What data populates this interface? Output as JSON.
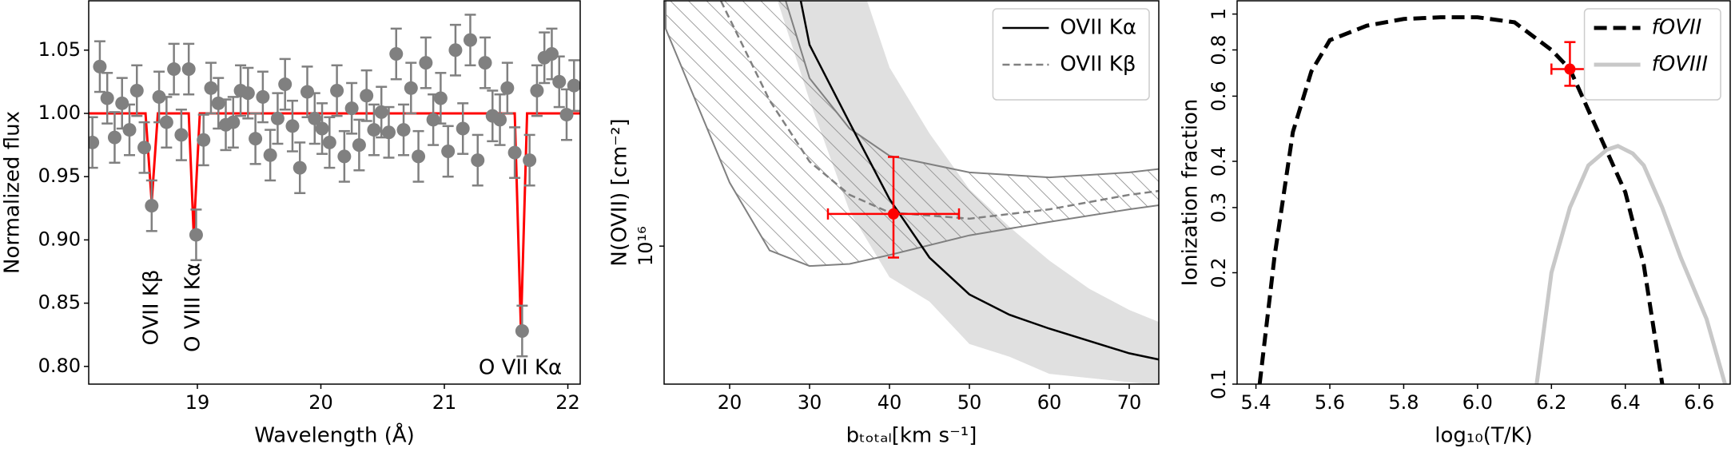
{
  "chart_data": [
    {
      "type": "errorbar",
      "xlabel": "Wavelength (Å)",
      "ylabel": "Normalized flux",
      "xlim": [
        18.12,
        22.1
      ],
      "ylim": [
        0.786,
        1.089
      ],
      "log_y": false,
      "xticks": [
        19,
        20,
        21,
        22
      ],
      "yticks": [
        {
          "value": 0.8,
          "label": "0.80"
        },
        {
          "value": 0.85,
          "label": "0.85"
        },
        {
          "value": 0.9,
          "label": "0.90"
        },
        {
          "value": 0.95,
          "label": "0.95"
        },
        {
          "value": 1.0,
          "label": "1.00"
        },
        {
          "value": 1.05,
          "label": "1.05"
        }
      ],
      "series": [
        {
          "type": "errorbar",
          "color": "#808080",
          "yerr": 0.02,
          "x": [
            18.15,
            18.21,
            18.27,
            18.33,
            18.39,
            18.45,
            18.51,
            18.57,
            18.63,
            18.69,
            18.75,
            18.81,
            18.87,
            18.93,
            18.99,
            19.05,
            19.11,
            19.17,
            19.23,
            19.29,
            19.35,
            19.41,
            19.47,
            19.53,
            19.59,
            19.65,
            19.71,
            19.77,
            19.83,
            19.89,
            19.95,
            20.01,
            20.07,
            20.13,
            20.19,
            20.25,
            20.31,
            20.37,
            20.43,
            20.49,
            20.55,
            20.61,
            20.67,
            20.73,
            20.79,
            20.85,
            20.91,
            20.97,
            21.03,
            21.09,
            21.15,
            21.21,
            21.27,
            21.33,
            21.39,
            21.45,
            21.51,
            21.57,
            21.63,
            21.69,
            21.75,
            21.81,
            21.87,
            21.93,
            21.99,
            22.05
          ],
          "values": [
            0.977,
            1.037,
            1.012,
            0.981,
            1.008,
            0.987,
            1.018,
            0.973,
            0.927,
            1.013,
            0.993,
            1.035,
            0.983,
            1.035,
            0.904,
            0.979,
            1.02,
            1.008,
            0.991,
            0.993,
            1.018,
            1.016,
            0.98,
            1.013,
            0.967,
            0.996,
            1.023,
            0.99,
            0.957,
            1.017,
            0.996,
            0.988,
            0.977,
            1.018,
            0.966,
            1.004,
            0.975,
            1.014,
            0.987,
            1.001,
            0.985,
            1.047,
            0.987,
            1.02,
            0.966,
            1.04,
            0.995,
            1.012,
            0.97,
            1.05,
            0.988,
            1.058,
            0.963,
            1.04,
            0.998,
            0.995,
            1.02,
            0.969,
            0.828,
            0.963,
            1.018,
            1.044,
            1.047,
            1.025,
            0.999,
            1.022
          ]
        },
        {
          "type": "line",
          "color": "#ff0000",
          "width": 3,
          "x": [
            18.12,
            18.58,
            18.63,
            18.68,
            18.93,
            18.97,
            19.02,
            21.57,
            21.62,
            21.67,
            22.1
          ],
          "values": [
            1,
            1,
            0.93,
            1,
            1,
            0.905,
            1,
            1,
            0.829,
            1,
            1
          ]
        }
      ],
      "annotations": [
        {
          "text": "OVII Kβ",
          "color": "#ff0000"
        },
        {
          "text": "O VIII Kα",
          "color": "#ff0000"
        },
        {
          "text": "O VII Kα",
          "color": "#ff0000"
        }
      ]
    },
    {
      "type": "errorbar",
      "xlabel": "bₜₒₜₐₗ[km s⁻¹]",
      "ylabel": "N(OVII) [cm⁻²]",
      "xlim": [
        11.8,
        73.7
      ],
      "ylim": [
        4740000000000000.0,
        3.77e+16
      ],
      "log_y": true,
      "xticks": [
        20,
        30,
        40,
        50,
        60,
        70
      ],
      "yticks": [
        {
          "value": 1e+16,
          "label": "10¹⁶"
        }
      ],
      "legend": "upper right",
      "series": [
        {
          "type": "band",
          "color": "#e0e0e0",
          "hatch": false,
          "x": [
            26,
            30,
            35,
            40,
            45,
            50,
            55,
            60,
            65,
            70,
            74
          ],
          "upper": [
            5e+16,
            5e+16,
            5e+16,
            2.63e+16,
            1.84e+16,
            1.36e+16,
            1.11e+16,
            9250000000000000.0,
            7940000000000000.0,
            7080000000000000.0,
            6600000000000000.0
          ],
          "lower": [
            3.77e+16,
            2.2e+16,
            1.21e+16,
            8450000000000000.0,
            7410000000000000.0,
            5890000000000000.0,
            5500000000000000.0,
            5010000000000000.0,
            4900000000000000.0,
            4790000000000000.0,
            4700000000000000.0
          ]
        },
        {
          "type": "band",
          "color": "#808080",
          "hatch": true,
          "x": [
            12,
            20,
            25,
            30,
            35,
            40,
            50,
            60,
            70,
            74
          ],
          "upper": [
            5e+16,
            5e+16,
            5e+16,
            2.48e+16,
            1.89e+16,
            1.63e+16,
            1.49e+16,
            1.45e+16,
            1.49e+16,
            1.52e+16
          ],
          "lower": [
            3.24e+16,
            1.41e+16,
            9770000000000000.0,
            8980000000000000.0,
            9080000000000000.0,
            9530000000000000.0,
            1.06e+16,
            1.14e+16,
            1.22e+16,
            1.25e+16
          ]
        },
        {
          "type": "line",
          "name": "OVII Kα",
          "color": "#000000",
          "width": 2.5,
          "dashed": false,
          "x": [
            28.9,
            30,
            35,
            40,
            45,
            50,
            55,
            60,
            70,
            74
          ],
          "values": [
            3.77e+16,
            2.97e+16,
            1.95e+16,
            1.29e+16,
            9400000000000000.0,
            7700000000000000.0,
            6900000000000000.0,
            6400000000000000.0,
            5600000000000000.0,
            5400000000000000.0
          ]
        },
        {
          "type": "line",
          "name": "OVII Kβ",
          "color": "#808080",
          "width": 2.5,
          "dashed": true,
          "x": [
            18.9,
            25,
            30,
            35,
            40,
            50,
            60,
            70,
            74
          ],
          "values": [
            3.77e+16,
            2.2e+16,
            1.58e+16,
            1.32e+16,
            1.2e+16,
            1.16e+16,
            1.22e+16,
            1.32e+16,
            1.35e+16
          ]
        },
        {
          "type": "errorbar",
          "color": "#ff0000",
          "x": [
            40.5
          ],
          "values": [
            1.19e+16
          ],
          "xerr": [
            8.2
          ],
          "yerr_lower": [
            2500000000000000.0
          ],
          "yerr_upper": [
            4300000000000000.0
          ]
        }
      ]
    },
    {
      "type": "errorbar",
      "xlabel": "log₁₀(T/K)",
      "ylabel": "Ionization fraction",
      "xlim": [
        5.349,
        6.684
      ],
      "ylim": [
        0.1,
        1.086
      ],
      "log_y": true,
      "xticks": [
        5.4,
        5.6,
        5.8,
        {
          "value": 6.0,
          "label": "6.0"
        },
        6.2,
        6.4,
        6.6
      ],
      "yticks": [
        0.1,
        0.2,
        0.3,
        0.4,
        0.6,
        0.8,
        1
      ],
      "legend": "upper right",
      "series": [
        {
          "type": "line",
          "name": "fOVII",
          "color": "#000000",
          "width": 5,
          "dashed": true,
          "x": [
            5.41,
            5.45,
            5.5,
            5.55,
            5.6,
            5.7,
            5.8,
            5.9,
            6.0,
            6.1,
            6.2,
            6.25,
            6.3,
            6.4,
            6.45,
            6.5
          ],
          "values": [
            0.1,
            0.22,
            0.48,
            0.7,
            0.85,
            0.93,
            0.97,
            0.98,
            0.98,
            0.95,
            0.8,
            0.71,
            0.55,
            0.33,
            0.21,
            0.1
          ]
        },
        {
          "type": "line",
          "name": "fOVIII",
          "color": "#c8c8c8",
          "width": 5,
          "dashed": false,
          "x": [
            6.16,
            6.2,
            6.25,
            6.3,
            6.35,
            6.38,
            6.42,
            6.45,
            6.5,
            6.55,
            6.62,
            6.67
          ],
          "values": [
            0.1,
            0.2,
            0.3,
            0.39,
            0.43,
            0.44,
            0.42,
            0.39,
            0.3,
            0.22,
            0.15,
            0.1
          ]
        },
        {
          "type": "errorbar",
          "color": "#ff0000",
          "x": [
            6.25
          ],
          "values": [
            0.71
          ],
          "xerr": [
            0.05
          ],
          "yerr_lower": [
            0.07
          ],
          "yerr_upper": [
            0.13
          ]
        }
      ]
    }
  ]
}
